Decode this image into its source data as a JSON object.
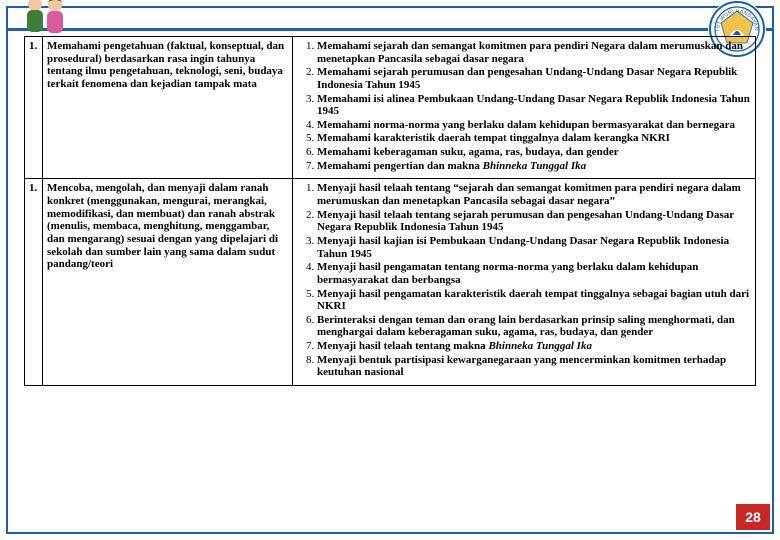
{
  "colors": {
    "accent": "#1c5ea8",
    "border": "#000000",
    "badge_bg": "#c62828",
    "badge_text": "#ffffff",
    "people_skin": "#f1c8a0",
    "people_boy": "#3f7e3a",
    "people_girl": "#d85b9b",
    "logo_ring": "#1c5ea8",
    "logo_inner": "#f1c34a"
  },
  "page_number": "28",
  "rows": [
    {
      "num": "1.",
      "left": "Memahami pengetahuan (faktual, konseptual, dan prosedural) berdasarkan rasa ingin tahunya tentang ilmu pengetahuan, teknologi, seni, budaya terkait fenomena dan kejadian tampak mata",
      "right": [
        "Memahami sejarah dan semangat komitmen para pendiri Negara dalam merumuskan dan menetapkan Pancasila sebagai dasar negara",
        "Memahami sejarah perumusan dan pengesahan Undang-Undang Dasar Negara Republik Indonesia Tahun 1945",
        "Memahami isi alinea Pembukaan Undang-Undang Dasar Negara Republik Indonesia Tahun 1945",
        "Memahami norma-norma yang berlaku dalam kehidupan bermasyarakat dan bernegara",
        "Memahami karakteristik daerah tempat tinggalnya dalam kerangka NKRI",
        "Memahami keberagaman suku, agama, ras, budaya, dan gender",
        "Memahami pengertian dan makna <em>Bhinneka Tunggal Ika</em>"
      ]
    },
    {
      "num": "1.",
      "left": "Mencoba, mengolah, dan menyaji dalam ranah konkret (menggunakan, mengurai, merangkai, memodifikasi, dan membuat) dan ranah abstrak (menulis, membaca, menghitung, menggambar, dan mengarang) sesuai dengan yang dipelajari di sekolah dan sumber lain yang sama dalam sudut pandang/teori",
      "right": [
        "Menyaji hasil telaah tentang “sejarah dan semangat komitmen para pendiri negara dalam merumuskan dan menetapkan Pancasila sebagai dasar negara”",
        "Menyaji hasil telaah tentang sejarah perumusan dan pengesahan Undang-Undang Dasar Negara Republik Indonesia Tahun 1945",
        "Menyaji hasil kajian isi Pembukaan Undang-Undang Dasar Negara Republik Indonesia Tahun 1945",
        "Menyaji hasil pengamatan tentang norma-norma yang berlaku dalam kehidupan bermasyarakat dan berbangsa",
        "Menyaji hasil pengamatan karakteristik daerah tempat tinggalnya sebagai bagian utuh dari NKRI",
        "Berinteraksi dengan teman dan orang lain berdasarkan prinsip saling menghormati, dan menghargai dalam keberagaman suku, agama, ras, budaya, dan gender",
        "Menyaji hasil telaah tentang makna <em>Bhinneka Tunggal Ika</em>",
        "Menyaji bentuk partisipasi kewarganegaraan yang mencerminkan komitmen terhadap keutuhan nasional"
      ]
    }
  ]
}
